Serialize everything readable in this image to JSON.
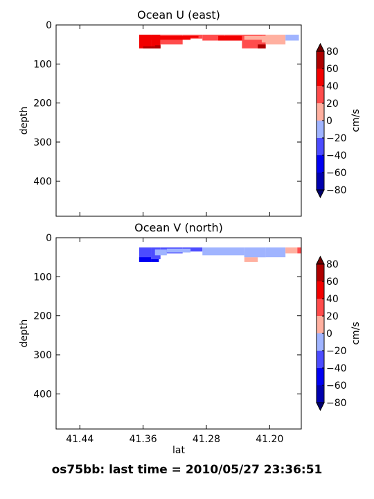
{
  "colors": {
    "levels": [
      -80,
      -60,
      -40,
      -20,
      0,
      20,
      40,
      60,
      80
    ],
    "bands": [
      "#0000ae",
      "#0000f2",
      "#4c4cff",
      "#a0b4ff",
      "#ffb0a0",
      "#ff4c4c",
      "#f20000",
      "#ae0000"
    ],
    "under": "#00006e",
    "over": "#6e0000"
  },
  "chart_data": [
    {
      "type": "contourf",
      "title": "Ocean U (east)",
      "ylabel": "depth",
      "xlabel": "",
      "x_inverted": true,
      "xlim": [
        41.47,
        41.16
      ],
      "ylim": [
        490,
        0
      ],
      "x_ticks": [
        41.44,
        41.36,
        41.28,
        41.2
      ],
      "x_ticks_labeled": false,
      "y_ticks": [
        0,
        100,
        200,
        300,
        400
      ],
      "colorbar": {
        "label": "cm/s",
        "ticks": [
          80,
          60,
          40,
          20,
          0,
          -20,
          -40,
          -60,
          -80
        ],
        "extend": "both"
      },
      "cells": [
        {
          "x": [
            41.365,
            41.35
          ],
          "d": [
            25,
            60
          ],
          "v": 45
        },
        {
          "x": [
            41.35,
            41.338
          ],
          "d": [
            25,
            60
          ],
          "v": 45
        },
        {
          "x": [
            41.338,
            41.31
          ],
          "d": [
            25,
            50
          ],
          "v": 30
        },
        {
          "x": [
            41.31,
            41.285
          ],
          "d": [
            25,
            35
          ],
          "v": 30
        },
        {
          "x": [
            41.285,
            41.257
          ],
          "d": [
            25,
            40
          ],
          "v": 25
        },
        {
          "x": [
            41.257,
            41.235
          ],
          "d": [
            25,
            40
          ],
          "v": 35
        },
        {
          "x": [
            41.235,
            41.205
          ],
          "d": [
            25,
            60
          ],
          "v": 35
        },
        {
          "x": [
            41.205,
            41.18
          ],
          "d": [
            25,
            50
          ],
          "v": 10
        },
        {
          "x": [
            41.18,
            41.163
          ],
          "d": [
            25,
            40
          ],
          "v": -10
        },
        {
          "x": [
            41.362,
            41.345
          ],
          "d": [
            28,
            38
          ],
          "v": 55
        },
        {
          "x": [
            41.345,
            41.3
          ],
          "d": [
            28,
            38
          ],
          "v": 55
        },
        {
          "x": [
            41.3,
            41.29
          ],
          "d": [
            28,
            33
          ],
          "v": 45
        },
        {
          "x": [
            41.36,
            41.345
          ],
          "d": [
            55,
            60
          ],
          "v": 65
        },
        {
          "x": [
            41.345,
            41.338
          ],
          "d": [
            52,
            60
          ],
          "v": 65
        },
        {
          "x": [
            41.215,
            41.205
          ],
          "d": [
            50,
            60
          ],
          "v": 65
        },
        {
          "x": [
            41.265,
            41.235
          ],
          "d": [
            28,
            40
          ],
          "v": 45
        },
        {
          "x": [
            41.232,
            41.205
          ],
          "d": [
            28,
            38
          ],
          "v": 10
        },
        {
          "x": [
            41.21,
            41.196
          ],
          "d": [
            28,
            45
          ],
          "v": 10
        }
      ]
    },
    {
      "type": "contourf",
      "title": "Ocean V (north)",
      "ylabel": "depth",
      "xlabel": "lat",
      "x_inverted": true,
      "xlim": [
        41.47,
        41.16
      ],
      "ylim": [
        490,
        0
      ],
      "x_ticks": [
        41.44,
        41.36,
        41.28,
        41.2
      ],
      "x_tick_labels": [
        "41.44",
        "41.36",
        "41.28",
        "41.20"
      ],
      "y_ticks": [
        0,
        100,
        200,
        300,
        400
      ],
      "colorbar": {
        "label": "cm/s",
        "ticks": [
          80,
          60,
          40,
          20,
          0,
          -20,
          -40,
          -60,
          -80
        ],
        "extend": "both"
      },
      "cells": [
        {
          "x": [
            41.365,
            41.35
          ],
          "d": [
            25,
            62
          ],
          "v": -30
        },
        {
          "x": [
            41.35,
            41.338
          ],
          "d": [
            25,
            55
          ],
          "v": -30
        },
        {
          "x": [
            41.338,
            41.31
          ],
          "d": [
            25,
            40
          ],
          "v": -30
        },
        {
          "x": [
            41.31,
            41.285
          ],
          "d": [
            25,
            35
          ],
          "v": -30
        },
        {
          "x": [
            41.285,
            41.232
          ],
          "d": [
            25,
            45
          ],
          "v": -10
        },
        {
          "x": [
            41.232,
            41.205
          ],
          "d": [
            25,
            50
          ],
          "v": -10
        },
        {
          "x": [
            41.205,
            41.18
          ],
          "d": [
            25,
            50
          ],
          "v": -10
        },
        {
          "x": [
            41.18,
            41.165
          ],
          "d": [
            25,
            40
          ],
          "v": 10
        },
        {
          "x": [
            41.165,
            41.16
          ],
          "d": [
            25,
            40
          ],
          "v": 30
        },
        {
          "x": [
            41.365,
            41.35
          ],
          "d": [
            50,
            62
          ],
          "v": -50
        },
        {
          "x": [
            41.35,
            41.34
          ],
          "d": [
            55,
            62
          ],
          "v": -50
        },
        {
          "x": [
            41.345,
            41.33
          ],
          "d": [
            30,
            45
          ],
          "v": -10
        },
        {
          "x": [
            41.33,
            41.3
          ],
          "d": [
            28,
            38
          ],
          "v": -10
        },
        {
          "x": [
            41.232,
            41.215
          ],
          "d": [
            50,
            62
          ],
          "v": 10
        },
        {
          "x": [
            41.232,
            41.205
          ],
          "d": [
            35,
            50
          ],
          "v": -10
        }
      ]
    }
  ],
  "footer": {
    "text": "os75bb: last time = 2010/05/27 23:36:51"
  }
}
